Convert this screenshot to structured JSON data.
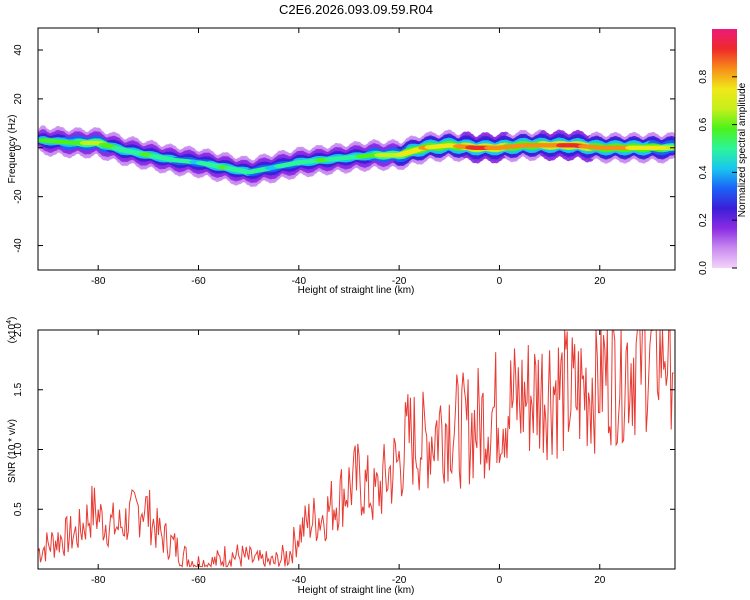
{
  "title": "C2E6.2026.093.09.59.R04",
  "colors": {
    "frame": "#000000",
    "snr_line": "#e83a32",
    "colormap": [
      "#f3d3f9",
      "#c98af0",
      "#8a2be2",
      "#3a1fd8",
      "#1b62f7",
      "#19c7ee",
      "#2df59a",
      "#4cf21a",
      "#c8ef1a",
      "#f0e81a",
      "#f78e1a",
      "#ee2a2a",
      "#ee1a7a"
    ]
  },
  "chart_data": [
    {
      "type": "heatmap",
      "title": "C2E6.2026.093.09.59.R04",
      "xlabel": "Height of straight line (km)",
      "ylabel": "Frequency (Hz)",
      "xlim": [
        -92,
        35
      ],
      "ylim": [
        -50,
        49
      ],
      "xticks": [
        -80,
        -60,
        -40,
        -20,
        0,
        20
      ],
      "xtick_labels": [
        "-80",
        "-60",
        "-40",
        "-20",
        "0",
        "20"
      ],
      "yticks": [
        -40,
        -20,
        0,
        20,
        40
      ],
      "ytick_labels": [
        "-40",
        "-20",
        "0",
        "20",
        "40"
      ],
      "colorbar": {
        "label": "Normalized spectral amplitude",
        "range": [
          0,
          1
        ],
        "ticks": [
          0.0,
          0.2,
          0.4,
          0.6,
          0.8
        ],
        "tick_labels": [
          "0.0",
          "0.2",
          "0.4",
          "0.6",
          "0.8"
        ]
      },
      "ridge": {
        "description": "frequency ridge of the dominant spectral component",
        "height_km": [
          -91,
          -85,
          -80,
          -75,
          -70,
          -65,
          -60,
          -55,
          -50,
          -45,
          -40,
          -35,
          -30,
          -25,
          -20,
          -15,
          -10,
          -5,
          0,
          5,
          10,
          15,
          20,
          25,
          30,
          35
        ],
        "frequency_hz": [
          3,
          2,
          2,
          -1,
          -3,
          -5,
          -6,
          -8,
          -10,
          -8,
          -6,
          -5,
          -4,
          -3,
          -3,
          0,
          1,
          0,
          0,
          1,
          1,
          1,
          0,
          0,
          0,
          0
        ],
        "amplitude": [
          0.55,
          0.6,
          0.65,
          0.5,
          0.55,
          0.5,
          0.45,
          0.55,
          0.5,
          0.45,
          0.5,
          0.55,
          0.5,
          0.6,
          0.7,
          0.8,
          0.75,
          0.9,
          0.85,
          0.8,
          0.85,
          0.9,
          0.8,
          0.8,
          0.75,
          0.7
        ]
      }
    },
    {
      "type": "line",
      "xlabel": "Height of straight line (km)",
      "ylabel": "SNR (10 * v/v)",
      "scale_label": "(x10^4)",
      "scale_base": "(x10",
      "scale_exp": "4",
      "scale_close": ")",
      "xlim": [
        -92,
        35
      ],
      "ylim": [
        0,
        2.0
      ],
      "xticks": [
        -80,
        -60,
        -40,
        -20,
        0,
        20
      ],
      "xtick_labels": [
        "-80",
        "-60",
        "-40",
        "-20",
        "0",
        "20"
      ],
      "yticks": [
        0.5,
        1.0,
        1.5,
        2.0
      ],
      "ytick_labels": [
        "0.5",
        "1.0",
        "1.5",
        "2.0"
      ],
      "series": [
        {
          "name": "SNR",
          "x": [
            -92,
            -88,
            -84,
            -81,
            -79,
            -76,
            -73,
            -71,
            -68,
            -65,
            -62,
            -60,
            -57,
            -54,
            -51,
            -48,
            -45,
            -42,
            -40,
            -38,
            -35,
            -32,
            -30,
            -28,
            -25,
            -22,
            -20,
            -18,
            -15,
            -12,
            -10,
            -8,
            -5,
            -2,
            0,
            3,
            6,
            9,
            10,
            12,
            15,
            18,
            20,
            23,
            26,
            29,
            32,
            35
          ],
          "y": [
            0.15,
            0.25,
            0.3,
            0.5,
            0.4,
            0.35,
            0.45,
            0.55,
            0.3,
            0.2,
            0.08,
            0.05,
            0.05,
            0.12,
            0.1,
            0.06,
            0.05,
            0.12,
            0.3,
            0.4,
            0.45,
            0.6,
            0.7,
            0.75,
            0.6,
            0.8,
            0.9,
            1.1,
            1.05,
            1.2,
            1.25,
            1.15,
            1.2,
            1.3,
            1.35,
            1.4,
            1.45,
            1.5,
            1.55,
            1.5,
            1.45,
            1.55,
            1.65,
            1.7,
            1.75,
            1.85,
            1.9,
            1.92
          ]
        }
      ]
    }
  ]
}
